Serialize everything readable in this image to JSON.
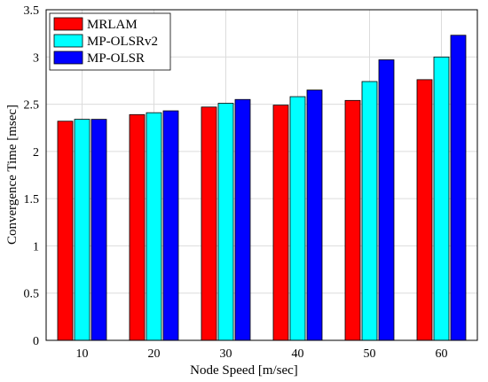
{
  "chart_data": {
    "type": "bar",
    "title": "",
    "xlabel": "Node Speed [m/sec]",
    "ylabel": "Convergence Time [msec]",
    "categories": [
      "10",
      "20",
      "30",
      "40",
      "50",
      "60"
    ],
    "ylim": [
      0,
      3.5
    ],
    "yticks": [
      "0",
      "0.5",
      "1",
      "1.5",
      "2",
      "2.5",
      "3",
      "3.5"
    ],
    "grid": true,
    "legend_position": "top-left",
    "series": [
      {
        "name": "MRLAM",
        "color": "#ff0000",
        "values": [
          2.32,
          2.39,
          2.47,
          2.49,
          2.54,
          2.76
        ]
      },
      {
        "name": "MP-OLSRv2",
        "color": "#00ffff",
        "values": [
          2.34,
          2.41,
          2.51,
          2.58,
          2.74,
          3.0
        ]
      },
      {
        "name": "MP-OLSR",
        "color": "#0000ff",
        "values": [
          2.34,
          2.43,
          2.55,
          2.65,
          2.97,
          3.23
        ]
      }
    ]
  }
}
